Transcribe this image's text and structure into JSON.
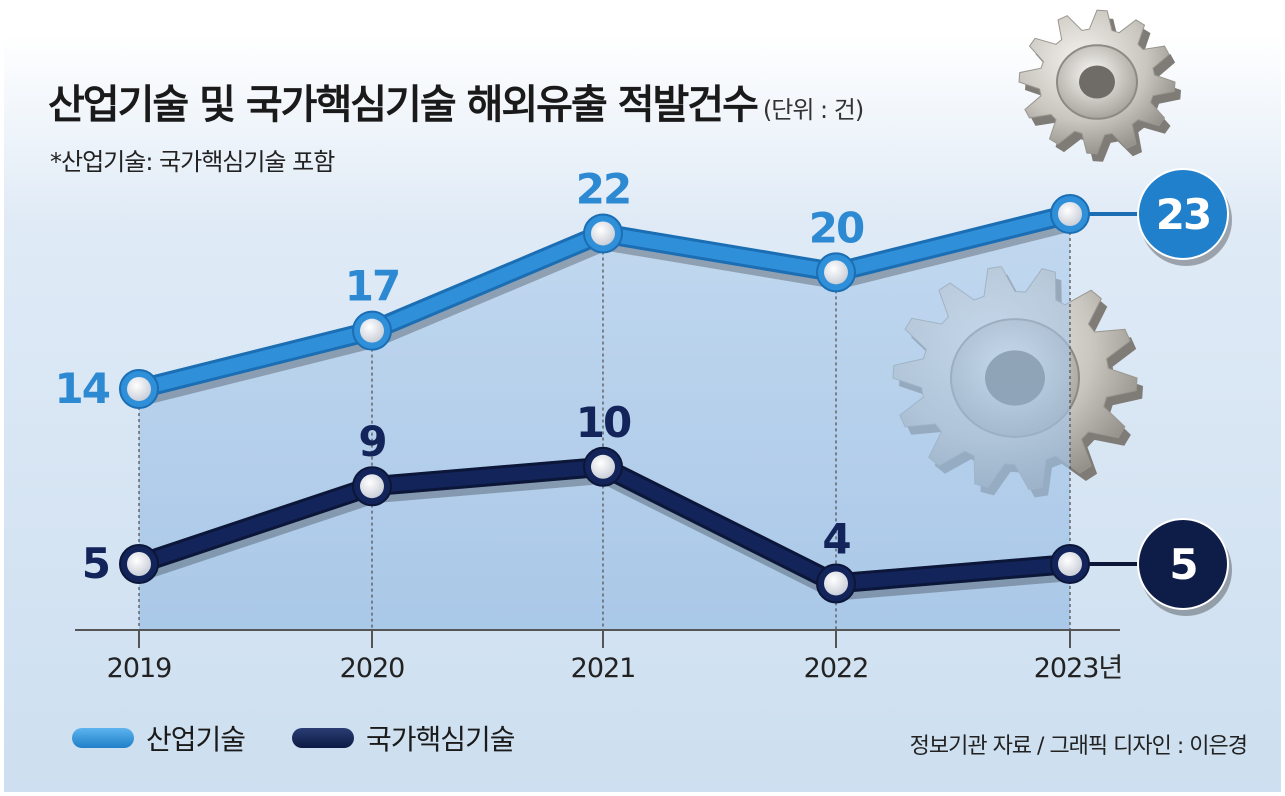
{
  "header": {
    "title": "산업기술 및 국가핵심기술 해외유출 적발건수",
    "unit": "(단위 : 건)",
    "subtitle": "*산업기술: 국가핵심기술 포함"
  },
  "footer": {
    "source": "정보기관 자료 / 그래픽 디자인 : 이은경"
  },
  "chart_data": {
    "type": "line",
    "x": [
      "2019",
      "2020",
      "2021",
      "2022",
      "2023"
    ],
    "x_tick_labels": [
      "2019",
      "2020",
      "2021",
      "2022",
      "2023년"
    ],
    "ylim": [
      0,
      25
    ],
    "series": [
      {
        "name": "산업기술",
        "values": [
          14,
          17,
          22,
          20,
          23
        ],
        "color": "#2e8fd6"
      },
      {
        "name": "국가핵심기술",
        "values": [
          5,
          9,
          10,
          4,
          5
        ],
        "color": "#0f2050"
      }
    ],
    "grid": false,
    "legend_position": "bottom-left"
  }
}
